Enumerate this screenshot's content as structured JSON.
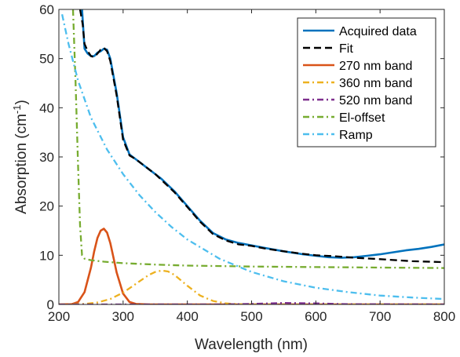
{
  "chart_data": {
    "type": "line",
    "xlabel": "Wavelength (nm)",
    "ylabel_main": "Absorption (cm",
    "ylabel_sup": "-1",
    "ylabel_tail": ")",
    "xlim": [
      200,
      800
    ],
    "ylim": [
      0,
      60
    ],
    "xticks": [
      200,
      300,
      400,
      500,
      600,
      700,
      800
    ],
    "yticks": [
      0,
      10,
      20,
      30,
      40,
      50,
      60
    ],
    "grid": false,
    "legend_position": "top-right",
    "series": [
      {
        "name": "Acquired data",
        "color": "#0072BD",
        "dash": "solid",
        "x": [
          236,
          240,
          245,
          250,
          255,
          260,
          265,
          270,
          275,
          280,
          290,
          300,
          310,
          320,
          330,
          340,
          350,
          360,
          380,
          400,
          420,
          440,
          460,
          480,
          500,
          520,
          550,
          580,
          600,
          620,
          640,
          660,
          680,
          700,
          720,
          740,
          760,
          780,
          800
        ],
        "y": [
          60,
          52,
          51,
          50.5,
          50.5,
          51.2,
          51.5,
          52,
          51.8,
          50,
          43,
          34,
          30.5,
          29.5,
          28.5,
          27.5,
          26.5,
          25.5,
          23,
          20,
          17,
          14.5,
          13.2,
          12.5,
          12,
          11.5,
          10.8,
          10.2,
          9.9,
          9.6,
          9.5,
          9.6,
          9.9,
          10.2,
          10.6,
          11,
          11.3,
          11.7,
          12.2
        ]
      },
      {
        "name": "Fit",
        "color": "#000000",
        "dash": "dashed",
        "x": [
          233,
          237,
          240,
          245,
          250,
          255,
          260,
          265,
          270,
          275,
          280,
          290,
          300,
          310,
          320,
          330,
          340,
          350,
          360,
          380,
          400,
          420,
          440,
          460,
          480,
          500,
          520,
          550,
          580,
          600,
          630,
          660,
          700,
          750,
          800
        ],
        "y": [
          60,
          57,
          53,
          51.5,
          50.5,
          50.3,
          51,
          51.8,
          52.2,
          51.5,
          49.5,
          42.5,
          33.5,
          30.3,
          29.5,
          28.5,
          27.5,
          26.5,
          25.3,
          22.8,
          19.8,
          16.8,
          14.3,
          13,
          12.2,
          11.9,
          11.4,
          10.8,
          10.3,
          10,
          9.8,
          9.5,
          9.2,
          8.8,
          8.6
        ]
      },
      {
        "name": "270 nm band",
        "color": "#D95319",
        "dash": "solid",
        "x": [
          200,
          220,
          230,
          240,
          250,
          255,
          260,
          265,
          270,
          275,
          280,
          285,
          290,
          300,
          310,
          320,
          340,
          800
        ],
        "y": [
          0,
          0.05,
          0.5,
          2.5,
          7.5,
          10.8,
          13.5,
          15,
          15.4,
          14.6,
          12.5,
          9.5,
          6.5,
          2.2,
          0.5,
          0.1,
          0,
          0
        ]
      },
      {
        "name": "360 nm band",
        "color": "#EDB120",
        "dash": "dashdot",
        "x": [
          200,
          240,
          260,
          280,
          300,
          320,
          340,
          350,
          360,
          370,
          380,
          400,
          420,
          440,
          460,
          480,
          500,
          550,
          800
        ],
        "y": [
          0,
          0.1,
          0.4,
          1.1,
          2.4,
          4.2,
          6,
          6.6,
          6.9,
          6.7,
          6,
          3.8,
          1.8,
          0.7,
          0.2,
          0.05,
          0,
          0,
          0
        ]
      },
      {
        "name": "520 nm band",
        "color": "#7E2F8E",
        "dash": "dashdot",
        "x": [
          200,
          450,
          500,
          550,
          600,
          650,
          800
        ],
        "y": [
          0,
          0,
          0.1,
          0.3,
          0.2,
          0.05,
          0
        ]
      },
      {
        "name": "El-offset",
        "color": "#77AC30",
        "dash": "dashdot",
        "x": [
          222,
          226,
          230,
          233,
          236,
          240,
          250,
          270,
          300,
          350,
          400,
          500,
          600,
          700,
          800
        ],
        "y": [
          60,
          45,
          28,
          16,
          10,
          9.3,
          9,
          8.7,
          8.4,
          8.1,
          7.9,
          7.7,
          7.6,
          7.5,
          7.4
        ]
      },
      {
        "name": "Ramp",
        "color": "#4DBEEE",
        "dash": "dashdot",
        "x": [
          205,
          215,
          230,
          250,
          275,
          300,
          325,
          350,
          375,
          400,
          450,
          500,
          550,
          600,
          650,
          700,
          750,
          800
        ],
        "y": [
          59,
          53,
          45.5,
          38,
          31.5,
          26.5,
          22.3,
          18.8,
          15.8,
          13.2,
          9.3,
          6.6,
          4.7,
          3.4,
          2.5,
          1.8,
          1.4,
          1.1
        ]
      }
    ]
  }
}
